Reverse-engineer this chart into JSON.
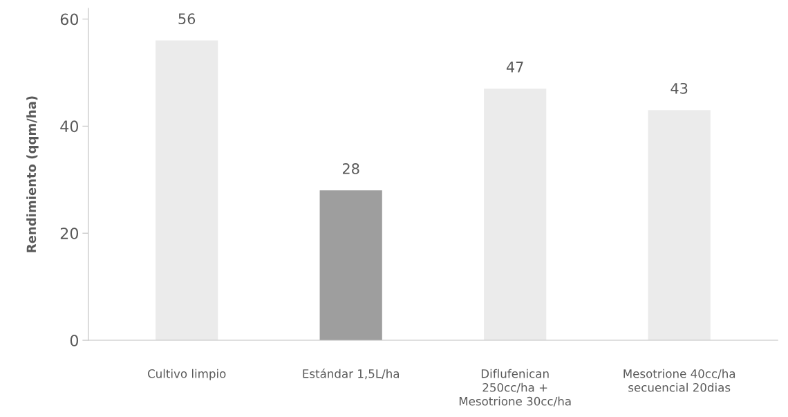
{
  "chart_data": {
    "type": "bar",
    "ylabel": "Rendimiento (qqm/ha)",
    "categories": [
      "Cultivo limpio",
      "Estándar 1,5L/ha",
      "Diflufenican\n250cc/ha +\nMesotrione 30cc/ha",
      "Mesotrione 40cc/ha\nsecuencial 20dias"
    ],
    "values": [
      56,
      28,
      47,
      43
    ],
    "colors": [
      "#ebebeb",
      "#9e9e9e",
      "#ebebeb",
      "#ebebeb"
    ],
    "ylim": [
      0,
      62
    ],
    "yticks": [
      0,
      20,
      40,
      60
    ],
    "data_labels": true,
    "grid": false,
    "legend": false
  }
}
